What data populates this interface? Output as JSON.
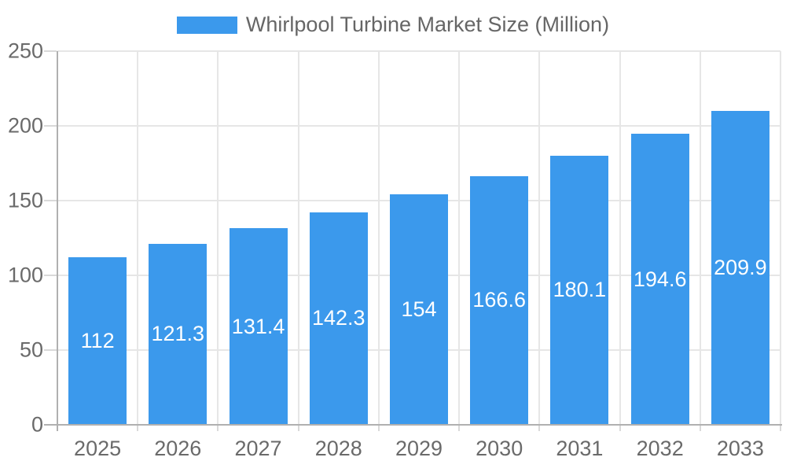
{
  "chart_data": {
    "type": "bar",
    "title": "Whirlpool Turbine Market Size (Million)",
    "categories": [
      "2025",
      "2026",
      "2027",
      "2028",
      "2029",
      "2030",
      "2031",
      "2032",
      "2033"
    ],
    "values": [
      112,
      121.3,
      131.4,
      142.3,
      154,
      166.6,
      180.1,
      194.6,
      209.9
    ],
    "xlabel": "",
    "ylabel": "",
    "ylim": [
      0,
      250
    ],
    "yticks": [
      0,
      50,
      100,
      150,
      200,
      250
    ],
    "grid": true,
    "legend_position": "top",
    "legend_label": "Whirlpool Turbine Market Size (Million)",
    "colors": {
      "bar": "#3b99ec",
      "bar_label": "#ffffff",
      "gridline": "#e6e6e6",
      "tick": "#d9d9d9",
      "axis_line": "#b0b0b0",
      "axis_text": "#6a6a6a",
      "legend_text": "#666666",
      "background": "#ffffff"
    }
  }
}
